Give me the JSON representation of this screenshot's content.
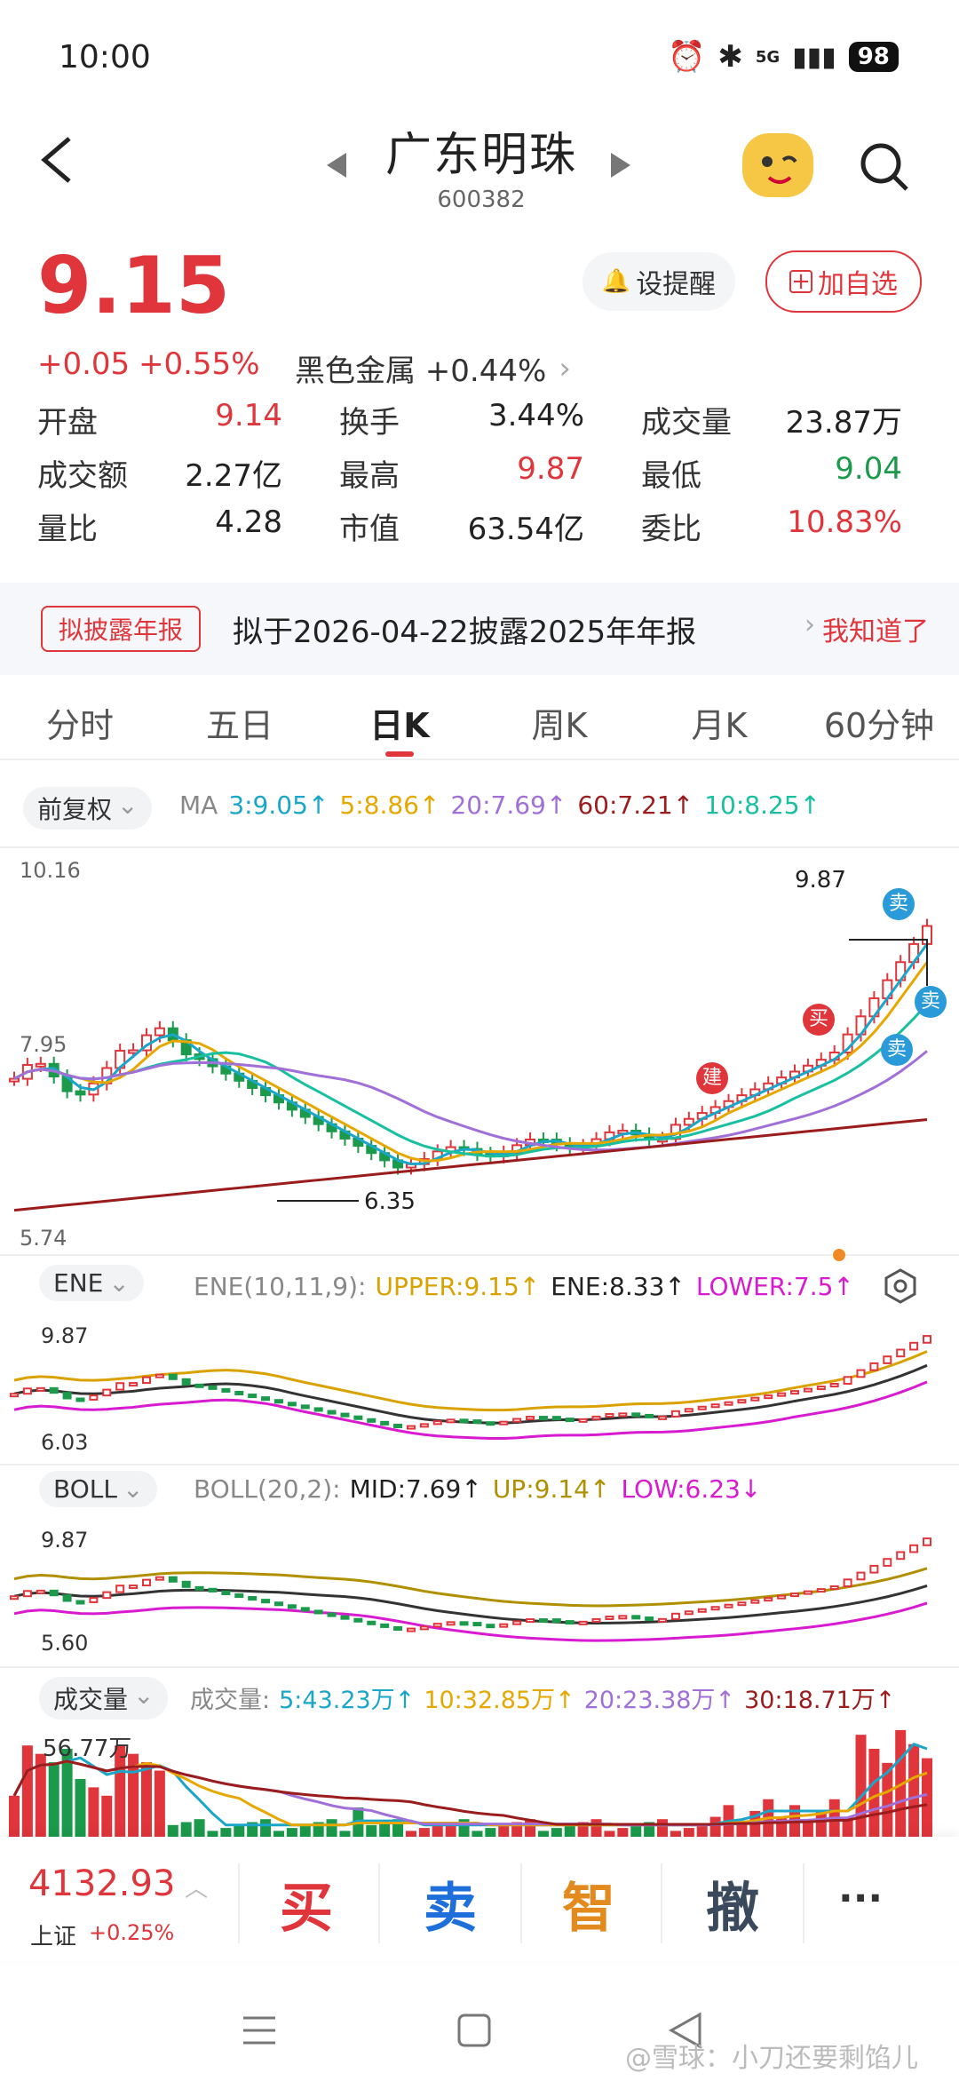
{
  "status_bar": {
    "time": "10:00",
    "network": "5G",
    "battery": "98"
  },
  "header": {
    "title": "广东明珠",
    "code": "600382"
  },
  "price": {
    "current": "9.15",
    "change": "+0.05",
    "change_pct": "+0.55%",
    "sector": "黑色金属 +0.44%",
    "alert_label": "设提醒",
    "add_watch_label": "加自选"
  },
  "stats": [
    {
      "label": "开盘",
      "value": "9.14",
      "color": "red"
    },
    {
      "label": "换手",
      "value": "3.44%",
      "color": "plain"
    },
    {
      "label": "成交量",
      "value": "23.87万",
      "color": "plain"
    },
    {
      "label": "成交额",
      "value": "2.27亿",
      "color": "plain"
    },
    {
      "label": "最高",
      "value": "9.87",
      "color": "red"
    },
    {
      "label": "最低",
      "value": "9.04",
      "color": "green"
    },
    {
      "label": "量比",
      "value": "4.28",
      "color": "plain"
    },
    {
      "label": "市值",
      "value": "63.54亿",
      "color": "plain"
    },
    {
      "label": "委比",
      "value": "10.83%",
      "color": "red"
    }
  ],
  "notice": {
    "tag": "拟披露年报",
    "text": "拟于2026-04-22披露2025年年报",
    "action": "我知道了"
  },
  "tabs": [
    "分时",
    "五日",
    "日K",
    "周K",
    "月K",
    "60分钟"
  ],
  "active_tab": 2,
  "ma_legend": {
    "adjust": "前复权",
    "prefix": "MA",
    "items": [
      {
        "text": "3:9.05↑",
        "color": "#1aa6c9"
      },
      {
        "text": "5:8.86↑",
        "color": "#e6a800"
      },
      {
        "text": "20:7.69↑",
        "color": "#a070d8"
      },
      {
        "text": "60:7.21↑",
        "color": "#9b1c1c"
      },
      {
        "text": "10:8.25↑",
        "color": "#18c0a0"
      }
    ]
  },
  "kline": {
    "y_top": "10.16",
    "y_mid": "7.95",
    "y_bottom": "5.74",
    "high_label": "9.87",
    "low_label": "6.35",
    "signals": [
      {
        "text": "建",
        "color": "#e0353b"
      },
      {
        "text": "买",
        "color": "#e0353b"
      },
      {
        "text": "卖",
        "color": "#2a9ad8"
      },
      {
        "text": "卖",
        "color": "#2a9ad8"
      },
      {
        "text": "卖",
        "color": "#2a9ad8"
      }
    ]
  },
  "ene": {
    "name": "ENE",
    "param": "ENE(10,11,9):",
    "items": [
      {
        "text": "UPPER:9.15↑",
        "color": "#d9a200"
      },
      {
        "text": "ENE:8.33↑",
        "color": "#222222"
      },
      {
        "text": "LOWER:7.5↑",
        "color": "#d81bd1"
      }
    ],
    "y_top": "9.87",
    "y_bottom": "6.03"
  },
  "boll": {
    "name": "BOLL",
    "param": "BOLL(20,2):",
    "items": [
      {
        "text": "MID:7.69↑",
        "color": "#222222"
      },
      {
        "text": "UP:9.14↑",
        "color": "#b09000"
      },
      {
        "text": "LOW:6.23↓",
        "color": "#d81bd1"
      }
    ],
    "y_top": "9.87",
    "y_bottom": "5.60"
  },
  "volume": {
    "name": "成交量",
    "param": "成交量:",
    "items": [
      {
        "text": "5:43.23万↑",
        "color": "#1aa6c9"
      },
      {
        "text": "10:32.85万↑",
        "color": "#e6a800"
      },
      {
        "text": "20:23.38万↑",
        "color": "#a070d8"
      },
      {
        "text": "30:18.71万↑",
        "color": "#9b1c1c"
      }
    ],
    "y_top": "56.77万"
  },
  "bottom": {
    "index_value": "4132.93",
    "index_name": "上证",
    "index_change": "+0.25%",
    "buy": "买",
    "sell": "卖",
    "smart": "智",
    "cancel": "撤",
    "more": "···"
  },
  "watermark": "@雪球：小刀还要剩馅儿"
}
